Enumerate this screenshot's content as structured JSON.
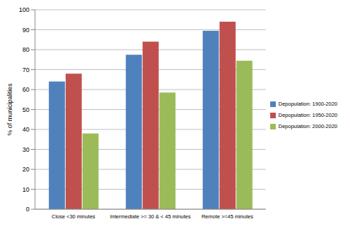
{
  "chart_data": {
    "type": "bar",
    "y_label": "% of municipalities",
    "categories": [
      "Close <30 minutes",
      "Intermediate >= 30 &  < 45 minutes",
      "Remote >=45 minutes"
    ],
    "series": [
      {
        "name": "Depopulation: 1900-2020",
        "color": "#4f81bd",
        "values": [
          64,
          77.5,
          89.5
        ]
      },
      {
        "name": "Depopulation: 1950-2020",
        "color": "#c0504d",
        "values": [
          68,
          84,
          94
        ]
      },
      {
        "name": "Depopulation: 2000-2020",
        "color": "#9bbb59",
        "values": [
          38,
          58.5,
          74.5
        ]
      }
    ],
    "ylim": [
      0,
      100
    ],
    "yticks": [
      0,
      10,
      20,
      30,
      40,
      50,
      60,
      70,
      80,
      90,
      100
    ],
    "grid": true,
    "legend": "right"
  }
}
